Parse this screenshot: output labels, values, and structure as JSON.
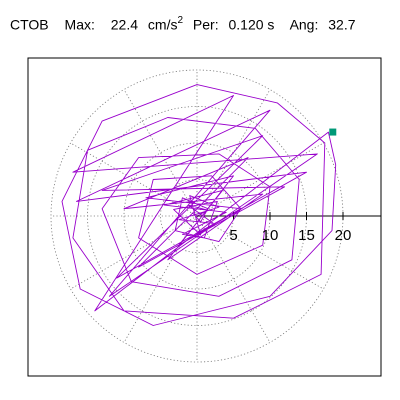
{
  "header": {
    "station": "CTOB",
    "max_label": "Max:",
    "max_value": "22.4",
    "max_unit_base": "cm/s",
    "max_unit_exp": "2",
    "per_label": "Per:",
    "per_value": "0.120 s",
    "ang_label": "Ang:",
    "ang_value": "32.7"
  },
  "chart_data": {
    "type": "line",
    "subtype": "polar-orbit",
    "title": "",
    "radial_ticks": [
      5,
      10,
      15,
      20
    ],
    "radial_tick_labels": [
      "5",
      "10",
      "15",
      "20"
    ],
    "max_radius": 22.4,
    "angle_deg": 32.7,
    "grid": true,
    "grid_style": "dotted circles and radial lines",
    "colors": {
      "trace": "#9900cc",
      "marker": "#009977",
      "grid": "#777777",
      "axis": "#000000",
      "frame": "#000000"
    },
    "series": [
      {
        "values_xy": [
          [
            0.0,
            0.0
          ],
          [
            1.5,
            0.8
          ],
          [
            -1.2,
            1.5
          ],
          [
            2.2,
            -1.0
          ],
          [
            -2.5,
            -0.5
          ],
          [
            3.0,
            1.2
          ],
          [
            -1.0,
            2.8
          ],
          [
            0.5,
            -2.6
          ],
          [
            -3.2,
            0.9
          ],
          [
            2.8,
            2.0
          ],
          [
            1.0,
            -3.0
          ],
          [
            -2.0,
            -2.5
          ],
          [
            4.0,
            0.5
          ],
          [
            -4.5,
            1.5
          ],
          [
            3.5,
            3.5
          ],
          [
            -2.5,
            -4.0
          ],
          [
            6.0,
            1.0
          ],
          [
            -7.0,
            2.5
          ],
          [
            5.0,
            5.5
          ],
          [
            -4.0,
            -6.0
          ],
          [
            9.0,
            3.0
          ],
          [
            -10.0,
            1.0
          ],
          [
            7.0,
            8.0
          ],
          [
            -8.0,
            -7.0
          ],
          [
            12.0,
            4.0
          ],
          [
            -13.0,
            3.5
          ],
          [
            9.0,
            11.0
          ],
          [
            -11.0,
            -8.5
          ],
          [
            15.0,
            6.0
          ],
          [
            -16.5,
            2.0
          ],
          [
            10.0,
            14.5
          ],
          [
            -12.0,
            -11.0
          ],
          [
            16.5,
            8.5
          ],
          [
            -17.0,
            6.0
          ],
          [
            5.0,
            16.5
          ],
          [
            -14.0,
            -13.0
          ],
          [
            18.0,
            11.5
          ],
          [
            19.0,
            7.0
          ],
          [
            18.5,
            -2.0
          ],
          [
            10.0,
            -11.0
          ],
          [
            -6.0,
            -15.0
          ],
          [
            -16.0,
            -10.0
          ],
          [
            -18.5,
            2.0
          ],
          [
            -13.0,
            13.0
          ],
          [
            0.0,
            18.0
          ],
          [
            11.0,
            15.5
          ],
          [
            17.5,
            10.0
          ],
          [
            17.0,
            -8.0
          ],
          [
            5.0,
            -14.0
          ],
          [
            -10.0,
            -13.0
          ],
          [
            -17.0,
            -3.0
          ],
          [
            -15.0,
            9.0
          ],
          [
            -4.0,
            13.5
          ],
          [
            8.0,
            12.0
          ],
          [
            14.0,
            5.0
          ],
          [
            13.0,
            -6.0
          ],
          [
            3.0,
            -11.0
          ],
          [
            -9.0,
            -9.0
          ],
          [
            -13.0,
            1.0
          ],
          [
            -8.0,
            8.0
          ],
          [
            3.0,
            8.5
          ],
          [
            10.0,
            4.0
          ],
          [
            9.0,
            -4.0
          ],
          [
            0.0,
            -8.0
          ],
          [
            -8.0,
            -3.0
          ],
          [
            -6.0,
            5.0
          ],
          [
            2.0,
            5.5
          ],
          [
            6.0,
            1.0
          ],
          [
            3.0,
            -3.5
          ],
          [
            -3.0,
            -2.0
          ],
          [
            -2.0,
            2.5
          ],
          [
            1.5,
            1.0
          ],
          [
            0.5,
            -0.8
          ],
          [
            -0.6,
            0.4
          ]
        ],
        "end_point": [
          18.6,
          11.5
        ]
      }
    ]
  }
}
